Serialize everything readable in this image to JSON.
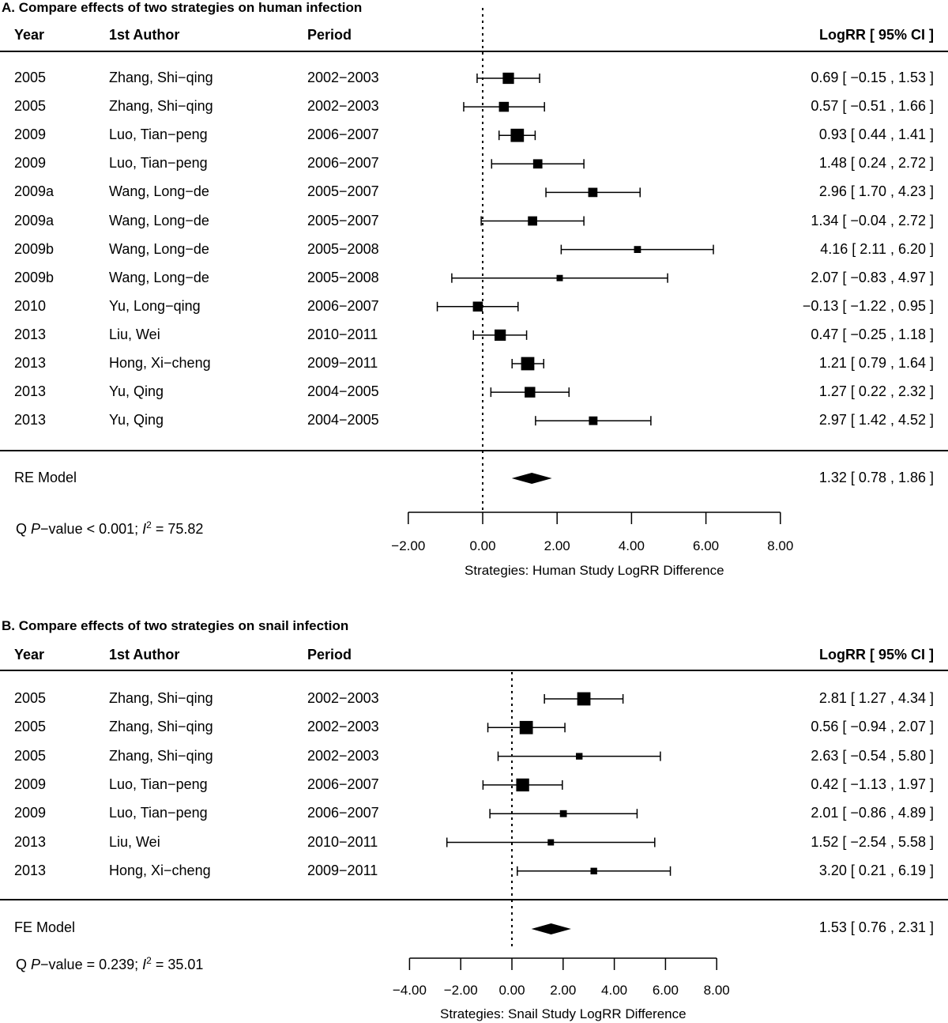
{
  "chart_data": [
    {
      "type": "forest",
      "title": "A. Compare effects of two strategies on human infection",
      "columns": {
        "year": "Year",
        "author": "1st Author",
        "period": "Period",
        "estimate": "LogRR [ 95% CI ]"
      },
      "rows": [
        {
          "year": "2005",
          "author": "Zhang, Shi−qing",
          "period": "2002−2003",
          "est": 0.69,
          "lo": -0.15,
          "hi": 1.53,
          "label": "0.69 [ −0.15 , 1.53 ]",
          "w": 2.2
        },
        {
          "year": "2005",
          "author": "Zhang, Shi−qing",
          "period": "2002−2003",
          "est": 0.57,
          "lo": -0.51,
          "hi": 1.66,
          "label": "0.57 [ −0.51 , 1.66 ]",
          "w": 1.8
        },
        {
          "year": "2009",
          "author": "Luo, Tian−peng",
          "period": "2006−2007",
          "est": 0.93,
          "lo": 0.44,
          "hi": 1.41,
          "label": "0.93 [  0.44 , 1.41 ]",
          "w": 2.8
        },
        {
          "year": "2009",
          "author": "Luo, Tian−peng",
          "period": "2006−2007",
          "est": 1.48,
          "lo": 0.24,
          "hi": 2.72,
          "label": "1.48 [  0.24 , 2.72 ]",
          "w": 1.6
        },
        {
          "year": "2009a",
          "author": "Wang, Long−de",
          "period": "2005−2007",
          "est": 2.96,
          "lo": 1.7,
          "hi": 4.23,
          "label": "2.96 [  1.70 , 4.23 ]",
          "w": 1.6
        },
        {
          "year": "2009a",
          "author": "Wang, Long−de",
          "period": "2005−2007",
          "est": 1.34,
          "lo": -0.04,
          "hi": 2.72,
          "label": "1.34 [ −0.04 , 2.72 ]",
          "w": 1.6
        },
        {
          "year": "2009b",
          "author": "Wang, Long−de",
          "period": "2005−2008",
          "est": 4.16,
          "lo": 2.11,
          "hi": 6.2,
          "label": "4.16 [  2.11 , 6.20 ]",
          "w": 0.9
        },
        {
          "year": "2009b",
          "author": "Wang, Long−de",
          "period": "2005−2008",
          "est": 2.07,
          "lo": -0.83,
          "hi": 4.97,
          "label": "2.07 [ −0.83 , 4.97 ]",
          "w": 0.7
        },
        {
          "year": "2010",
          "author": "Yu, Long−qing",
          "period": "2006−2007",
          "est": -0.13,
          "lo": -1.22,
          "hi": 0.95,
          "label": "−0.13 [ −1.22 , 0.95 ]",
          "w": 1.8
        },
        {
          "year": "2013",
          "author": "Liu, Wei",
          "period": "2010−2011",
          "est": 0.47,
          "lo": -0.25,
          "hi": 1.18,
          "label": "0.47 [ −0.25 , 1.18 ]",
          "w": 2.2
        },
        {
          "year": "2013",
          "author": "Hong, Xi−cheng",
          "period": "2009−2011",
          "est": 1.21,
          "lo": 0.79,
          "hi": 1.64,
          "label": "1.21 [  0.79 , 1.64 ]",
          "w": 2.8
        },
        {
          "year": "2013",
          "author": "Yu, Qing",
          "period": "2004−2005",
          "est": 1.27,
          "lo": 0.22,
          "hi": 2.32,
          "label": "1.27 [  0.22 , 2.32 ]",
          "w": 2.0
        },
        {
          "year": "2013",
          "author": "Yu, Qing",
          "period": "2004−2005",
          "est": 2.97,
          "lo": 1.42,
          "hi": 4.52,
          "label": "2.97 [  1.42 , 4.52 ]",
          "w": 1.4
        }
      ],
      "summary": {
        "name": "RE Model",
        "est": 1.32,
        "lo": 0.78,
        "hi": 1.86,
        "label": "1.32 [  0.78 , 1.86 ]"
      },
      "heterogeneity": {
        "prefix": "Q ",
        "p_symbol": "P",
        "p_text": "−value < 0.001;  ",
        "i_symbol": "I",
        "i_exp": "2",
        "i_text": " = 75.82"
      },
      "xaxis": {
        "min": -2,
        "max": 8,
        "ticks": [
          "−2.00",
          "0.00",
          "2.00",
          "4.00",
          "6.00",
          "8.00"
        ],
        "tick_values": [
          -2,
          0,
          2,
          4,
          6,
          8
        ],
        "label": "Strategies: Human Study LogRR Difference"
      },
      "reference_line": 0
    },
    {
      "type": "forest",
      "title": "B. Compare effects of two strategies on snail infection",
      "columns": {
        "year": "Year",
        "author": "1st Author",
        "period": "Period",
        "estimate": "LogRR [ 95% CI ]"
      },
      "rows": [
        {
          "year": "2005",
          "author": "Zhang, Shi−qing",
          "period": "2002−2003",
          "est": 2.81,
          "lo": 1.27,
          "hi": 4.34,
          "label": "2.81 [  1.27 , 4.34 ]",
          "w": 2.8
        },
        {
          "year": "2005",
          "author": "Zhang, Shi−qing",
          "period": "2002−2003",
          "est": 0.56,
          "lo": -0.94,
          "hi": 2.07,
          "label": "0.56 [ −0.94 , 2.07 ]",
          "w": 2.8
        },
        {
          "year": "2005",
          "author": "Zhang, Shi−qing",
          "period": "2002−2003",
          "est": 2.63,
          "lo": -0.54,
          "hi": 5.8,
          "label": "2.63 [ −0.54 , 5.80 ]",
          "w": 0.8
        },
        {
          "year": "2009",
          "author": "Luo, Tian−peng",
          "period": "2006−2007",
          "est": 0.42,
          "lo": -1.13,
          "hi": 1.97,
          "label": "0.42 [ −1.13 , 1.97 ]",
          "w": 2.7
        },
        {
          "year": "2009",
          "author": "Luo, Tian−peng",
          "period": "2006−2007",
          "est": 2.01,
          "lo": -0.86,
          "hi": 4.89,
          "label": "2.01 [ −0.86 , 4.89 ]",
          "w": 0.9
        },
        {
          "year": "2013",
          "author": "Liu, Wei",
          "period": "2010−2011",
          "est": 1.52,
          "lo": -2.54,
          "hi": 5.58,
          "label": "1.52 [ −2.54 , 5.58 ]",
          "w": 0.7
        },
        {
          "year": "2013",
          "author": "Hong, Xi−cheng",
          "period": "2009−2011",
          "est": 3.2,
          "lo": 0.21,
          "hi": 6.19,
          "label": "3.20 [  0.21 , 6.19 ]",
          "w": 0.8
        }
      ],
      "summary": {
        "name": "FE Model",
        "est": 1.53,
        "lo": 0.76,
        "hi": 2.31,
        "label": "1.53 [  0.76 , 2.31 ]"
      },
      "heterogeneity": {
        "prefix": "Q ",
        "p_symbol": "P",
        "p_text": "−value = 0.239;  ",
        "i_symbol": "I",
        "i_exp": "2",
        "i_text": " = 35.01"
      },
      "xaxis": {
        "min": -4,
        "max": 8,
        "ticks": [
          "−4.00",
          "−2.00",
          "0.00",
          "2.00",
          "4.00",
          "6.00",
          "8.00"
        ],
        "tick_values": [
          -4,
          -2,
          0,
          2,
          4,
          6,
          8
        ],
        "label": "Strategies: Snail Study LogRR Difference"
      },
      "reference_line": 0
    }
  ]
}
